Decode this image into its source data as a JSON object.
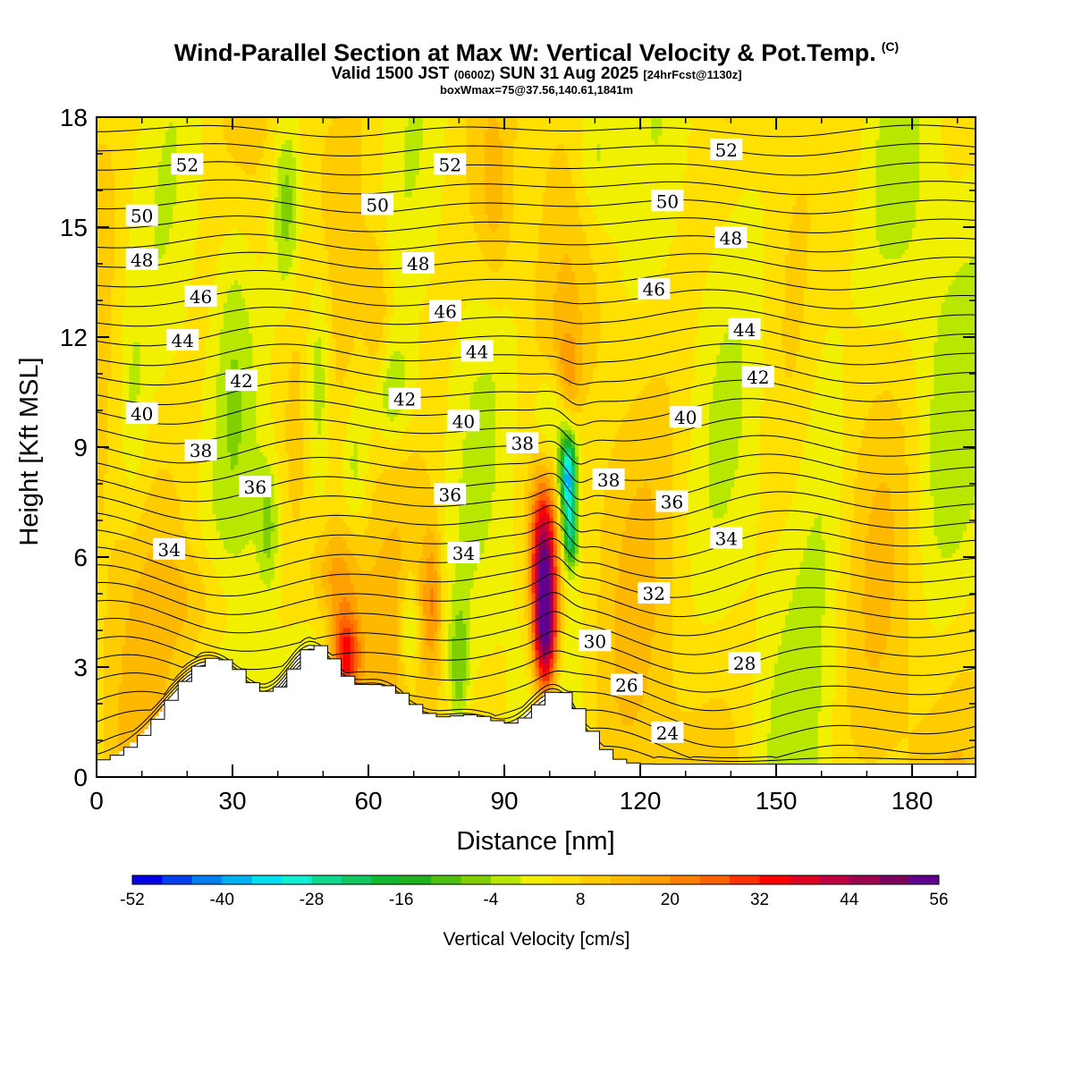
{
  "title": {
    "main": "Wind-Parallel Section at Max W: Vertical Velocity & Pot.Temp.",
    "copyright": "(C)",
    "valid_a": "Valid 1500 JST",
    "valid_b": "(0600Z)",
    "valid_c": "SUN 31 Aug 2025",
    "valid_d": "[24hrFcst@1130z]",
    "box": "boxWmax=75@37.56,140.61,1841m"
  },
  "chart_data": {
    "type": "heatmap",
    "title": "Wind-Parallel Section at Max W: Vertical Velocity & Pot.Temp.",
    "xlabel": "Distance [nm]",
    "ylabel": "Height [Kft MSL]",
    "xlim": [
      0,
      194
    ],
    "ylim": [
      0,
      18
    ],
    "xticks": [
      0,
      30,
      60,
      90,
      120,
      150,
      180
    ],
    "yticks": [
      0,
      3,
      6,
      9,
      12,
      15,
      18
    ],
    "colorbar": {
      "label": "Vertical Velocity [cm/s]",
      "min": -52,
      "max": 56,
      "step": 4,
      "tick_labels": [
        "-52",
        "-40",
        "-28",
        "-16",
        "-4",
        "8",
        "20",
        "32",
        "44",
        "56"
      ],
      "colors": [
        "#0000e8",
        "#0040f0",
        "#0080f0",
        "#00b0f0",
        "#00e0f0",
        "#10f0d0",
        "#10d890",
        "#10c860",
        "#10b830",
        "#20b020",
        "#50c010",
        "#80d000",
        "#b8e800",
        "#f0f000",
        "#ffe000",
        "#ffcc00",
        "#ffb800",
        "#ffa000",
        "#ff8000",
        "#ff6000",
        "#ff3000",
        "#ff0000",
        "#e00020",
        "#c00040",
        "#a00050",
        "#800060",
        "#600090"
      ]
    },
    "velocity_features": [
      {
        "x": 99,
        "y": 4.5,
        "w": 56,
        "kind": "updraft core"
      },
      {
        "x": 104,
        "y": 8.3,
        "w": -45,
        "kind": "downdraft"
      },
      {
        "x": 55,
        "y": 3.3,
        "w": 30,
        "kind": "updraft"
      },
      {
        "x": 51,
        "y": 11.0,
        "w": -14,
        "kind": "downdraft"
      },
      {
        "x": 80,
        "y": 3.0,
        "w": -14,
        "kind": "downdraft"
      }
    ],
    "theta_contours": {
      "units": "potential temperature label",
      "labels": [
        {
          "text": "52",
          "x": 20,
          "y": 16.7
        },
        {
          "text": "52",
          "x": 78,
          "y": 16.7
        },
        {
          "text": "52",
          "x": 139,
          "y": 17.1
        },
        {
          "text": "50",
          "x": 10,
          "y": 15.3
        },
        {
          "text": "50",
          "x": 62,
          "y": 15.6
        },
        {
          "text": "50",
          "x": 126,
          "y": 15.7
        },
        {
          "text": "48",
          "x": 10,
          "y": 14.1
        },
        {
          "text": "48",
          "x": 71,
          "y": 14.0
        },
        {
          "text": "48",
          "x": 140,
          "y": 14.7
        },
        {
          "text": "46",
          "x": 23,
          "y": 13.1
        },
        {
          "text": "46",
          "x": 77,
          "y": 12.7
        },
        {
          "text": "46",
          "x": 123,
          "y": 13.3
        },
        {
          "text": "44",
          "x": 19,
          "y": 11.9
        },
        {
          "text": "44",
          "x": 84,
          "y": 11.6
        },
        {
          "text": "44",
          "x": 143,
          "y": 12.2
        },
        {
          "text": "42",
          "x": 32,
          "y": 10.8
        },
        {
          "text": "42",
          "x": 68,
          "y": 10.3
        },
        {
          "text": "42",
          "x": 146,
          "y": 10.9
        },
        {
          "text": "40",
          "x": 10,
          "y": 9.9
        },
        {
          "text": "40",
          "x": 81,
          "y": 9.7
        },
        {
          "text": "40",
          "x": 130,
          "y": 9.8
        },
        {
          "text": "38",
          "x": 23,
          "y": 8.9
        },
        {
          "text": "38",
          "x": 94,
          "y": 9.1
        },
        {
          "text": "38",
          "x": 113,
          "y": 8.1
        },
        {
          "text": "36",
          "x": 35,
          "y": 7.9
        },
        {
          "text": "36",
          "x": 78,
          "y": 7.7
        },
        {
          "text": "36",
          "x": 127,
          "y": 7.5
        },
        {
          "text": "34",
          "x": 16,
          "y": 6.2
        },
        {
          "text": "34",
          "x": 81,
          "y": 6.1
        },
        {
          "text": "34",
          "x": 139,
          "y": 6.5
        },
        {
          "text": "32",
          "x": 123,
          "y": 5.0
        },
        {
          "text": "30",
          "x": 110,
          "y": 3.7
        },
        {
          "text": "28",
          "x": 143,
          "y": 3.1
        },
        {
          "text": "26",
          "x": 117,
          "y": 2.5
        },
        {
          "text": "24",
          "x": 126,
          "y": 1.2
        }
      ]
    }
  }
}
